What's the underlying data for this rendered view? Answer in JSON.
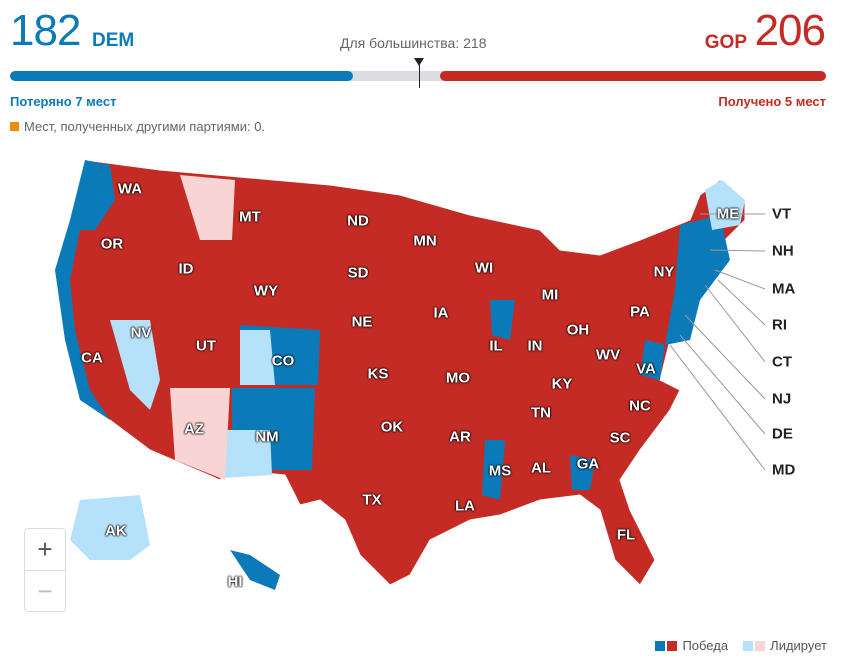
{
  "header": {
    "dem_seats": "182",
    "dem_label": "DEM",
    "gop_seats": "206",
    "gop_label": "GOP",
    "majority_text": "Для большинства: 218",
    "dem_change": "Потеряно 7 мест",
    "gop_change": "Получено 5 мест",
    "other_text": "Мест, полученных другими партиями: 0."
  },
  "bar": {
    "total": 435,
    "dem": 182,
    "gop": 206,
    "majority": 218
  },
  "colors": {
    "dem_win": "#0a7bb8",
    "gop_win": "#c52b25",
    "dem_lead": "#b5e1fb",
    "gop_lead": "#f8d4d4",
    "other": "#f08c00"
  },
  "states": [
    "WA",
    "OR",
    "CA",
    "NV",
    "ID",
    "MT",
    "WY",
    "UT",
    "CO",
    "AZ",
    "NM",
    "ND",
    "SD",
    "NE",
    "KS",
    "OK",
    "TX",
    "MN",
    "IA",
    "MO",
    "AR",
    "LA",
    "WI",
    "IL",
    "MS",
    "AL",
    "TN",
    "KY",
    "IN",
    "OH",
    "MI",
    "WV",
    "VA",
    "NC",
    "SC",
    "GA",
    "FL",
    "PA",
    "NY",
    "ME",
    "AK",
    "HI"
  ],
  "right_labels": [
    "VT",
    "NH",
    "MA",
    "RI",
    "CT",
    "NJ",
    "DE",
    "MD"
  ],
  "zoom": {
    "in": "+",
    "out": "−"
  },
  "legend": {
    "win": "Победа",
    "lead": "Лидирует"
  }
}
